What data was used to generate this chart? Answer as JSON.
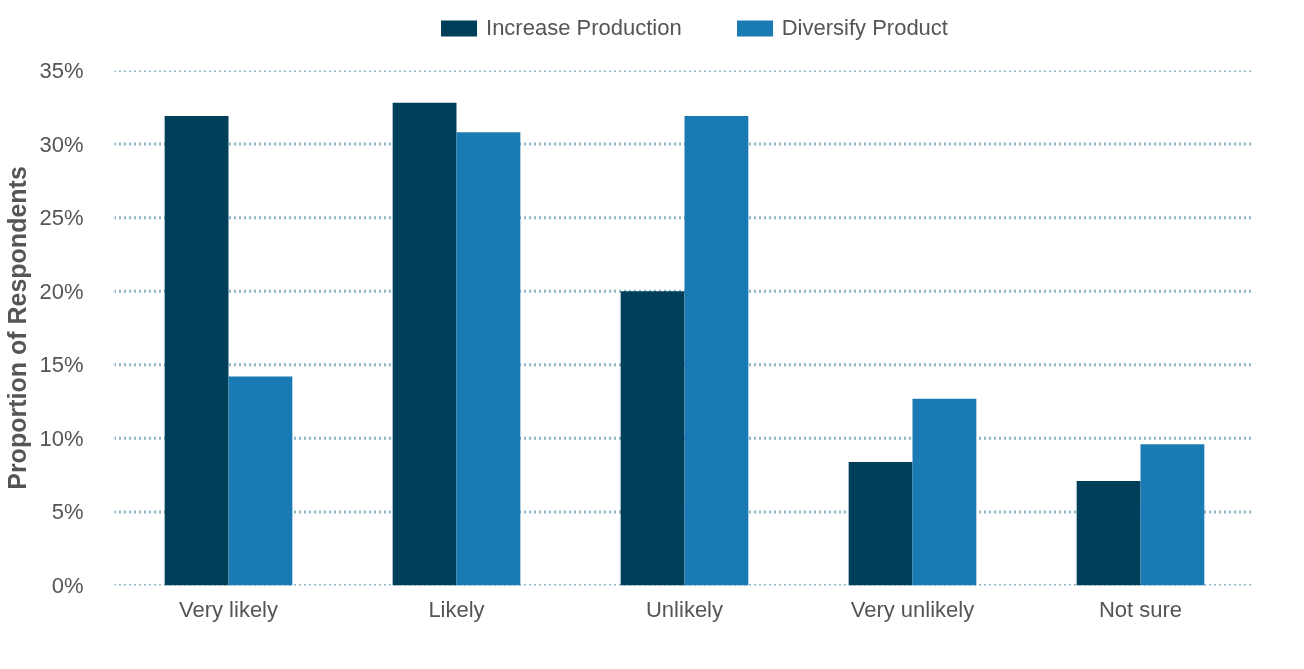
{
  "chart_data": {
    "type": "bar",
    "ylabel": "Proportion of Respondents",
    "categories": [
      "Very likely",
      "Likely",
      "Unlikely",
      "Very unlikely",
      "Not sure"
    ],
    "series": [
      {
        "name": "Increase Production",
        "color": "#003f5a",
        "values": [
          31.9,
          32.8,
          20.0,
          8.4,
          7.1
        ]
      },
      {
        "name": "Diversify Product",
        "color": "#1a7ab3",
        "values": [
          14.2,
          30.8,
          31.9,
          12.7,
          9.6
        ]
      }
    ],
    "ylim": [
      0,
      35
    ],
    "yticks": [
      {
        "value": 0,
        "label": "0%"
      },
      {
        "value": 5,
        "label": "5%"
      },
      {
        "value": 10,
        "label": "10%"
      },
      {
        "value": 15,
        "label": "15%"
      },
      {
        "value": 20,
        "label": "20%"
      },
      {
        "value": 25,
        "label": "25%"
      },
      {
        "value": 30,
        "label": "30%"
      },
      {
        "value": 35,
        "label": "35%"
      }
    ],
    "grid": "y",
    "legend": "top"
  }
}
